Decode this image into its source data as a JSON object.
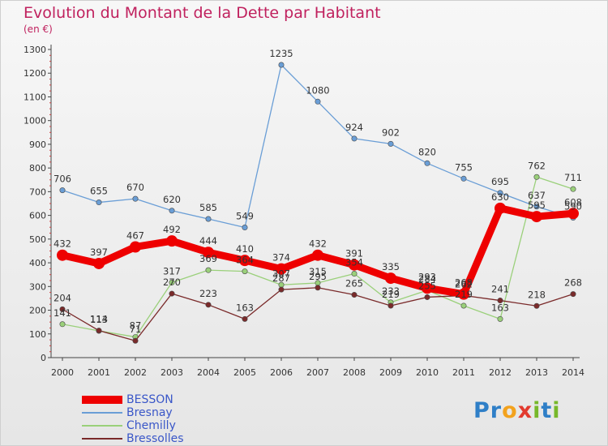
{
  "title": "Evolution du Montant de la Dette par Habitant",
  "subtitle": "(en €)",
  "brand": {
    "letters": [
      {
        "ch": "P",
        "color": "#2f7fc7"
      },
      {
        "ch": "r",
        "color": "#2f7fc7"
      },
      {
        "ch": "o",
        "color": "#f3a21d"
      },
      {
        "ch": "x",
        "color": "#e23a2e"
      },
      {
        "ch": "i",
        "color": "#77b82a"
      },
      {
        "ch": "t",
        "color": "#2f7fc7"
      },
      {
        "ch": "i",
        "color": "#77b82a"
      }
    ]
  },
  "chart_data": {
    "type": "line",
    "title": "Evolution du Montant de la Dette par Habitant",
    "subtitle": "(en €)",
    "xlabel": "",
    "ylabel": "",
    "x": [
      "2000",
      "2001",
      "2002",
      "2003",
      "2004",
      "2005",
      "2006",
      "2007",
      "2008",
      "2009",
      "2010",
      "2011",
      "2012",
      "2013",
      "2014"
    ],
    "ylim": [
      0,
      1300
    ],
    "yticks": [
      0,
      100,
      200,
      300,
      400,
      500,
      600,
      700,
      800,
      900,
      1000,
      1100,
      1200,
      1300
    ],
    "grid": false,
    "legend_position": "bottom-left",
    "series": [
      {
        "name": "BESSON",
        "color": "#ee0000",
        "width": 9,
        "values": [
          432,
          397,
          467,
          492,
          444,
          410,
          374,
          432,
          391,
          335,
          293,
          268,
          630,
          595,
          608
        ],
        "labels": [
          "432",
          "397",
          "467",
          "492",
          "444",
          "410",
          "374",
          "432",
          "391",
          "335",
          "293",
          "268",
          "630",
          "595",
          "608"
        ]
      },
      {
        "name": "Bresnay",
        "color": "#6a9ed6",
        "width": 1.3,
        "values": [
          706,
          655,
          670,
          620,
          585,
          549,
          1235,
          1080,
          924,
          902,
          820,
          755,
          695,
          637,
          590
        ],
        "labels": [
          "706",
          "655",
          "670",
          "620",
          "585",
          "549",
          "1235",
          "1080",
          "924",
          "902",
          "820",
          "755",
          "695",
          "637",
          "590"
        ]
      },
      {
        "name": "Chemilly",
        "color": "#9ad07a",
        "width": 1.3,
        "values": [
          141,
          113,
          87,
          317,
          369,
          364,
          307,
          315,
          354,
          233,
          284,
          219,
          163,
          762,
          711
        ],
        "labels": [
          "141",
          "113",
          "87",
          "317",
          "369",
          "364",
          "307",
          "315",
          "354",
          "233",
          "284",
          "219",
          "163",
          "762",
          "711"
        ]
      },
      {
        "name": "Bressolles",
        "color": "#7a2a2a",
        "width": 1.3,
        "values": [
          204,
          114,
          71,
          270,
          223,
          163,
          287,
          295,
          265,
          219,
          255,
          262,
          241,
          218,
          268
        ],
        "labels": [
          "204",
          "114",
          "71",
          "270",
          "223",
          "163",
          "287",
          "295",
          "265",
          "219",
          "255",
          "262",
          "241",
          "218",
          "268"
        ]
      }
    ]
  }
}
